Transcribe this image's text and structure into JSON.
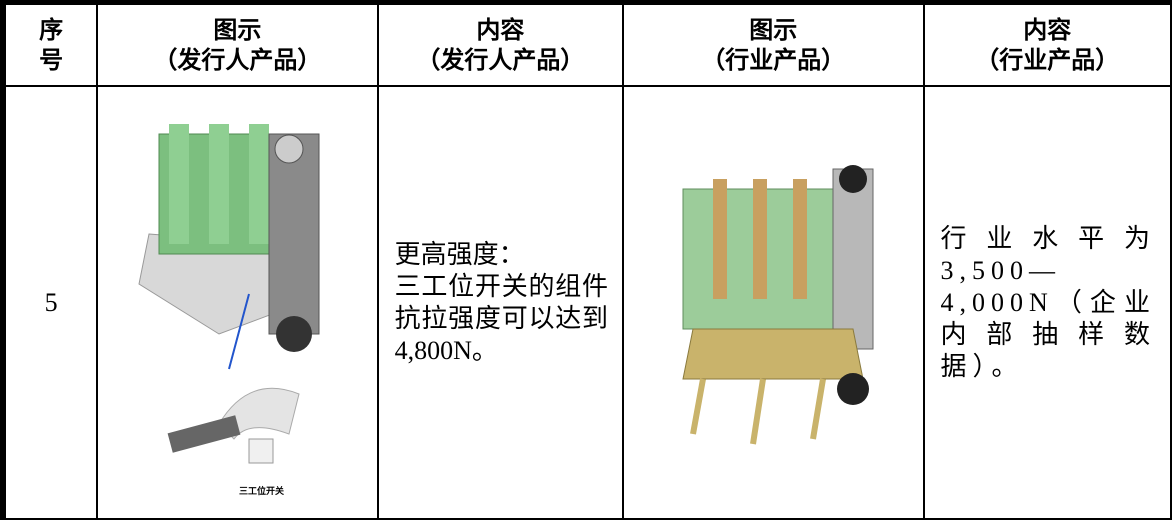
{
  "table": {
    "header": [
      [
        "序",
        "号"
      ],
      [
        "图示",
        "（发行人产品）"
      ],
      [
        "内容",
        "（发行人产品）"
      ],
      [
        "图示",
        "（行业产品）"
      ],
      [
        "内容",
        "（行业产品）"
      ]
    ],
    "rows": [
      {
        "index": "5",
        "issuer_image_caption": "三工位开关",
        "issuer_content": [
          "更高强度：",
          "三工位开关的组件抗拉强度可以达到4,800N。"
        ],
        "industry_content": [
          "行业水平为3,500—4,000N（企业内部抽样数据）。"
        ]
      }
    ]
  }
}
